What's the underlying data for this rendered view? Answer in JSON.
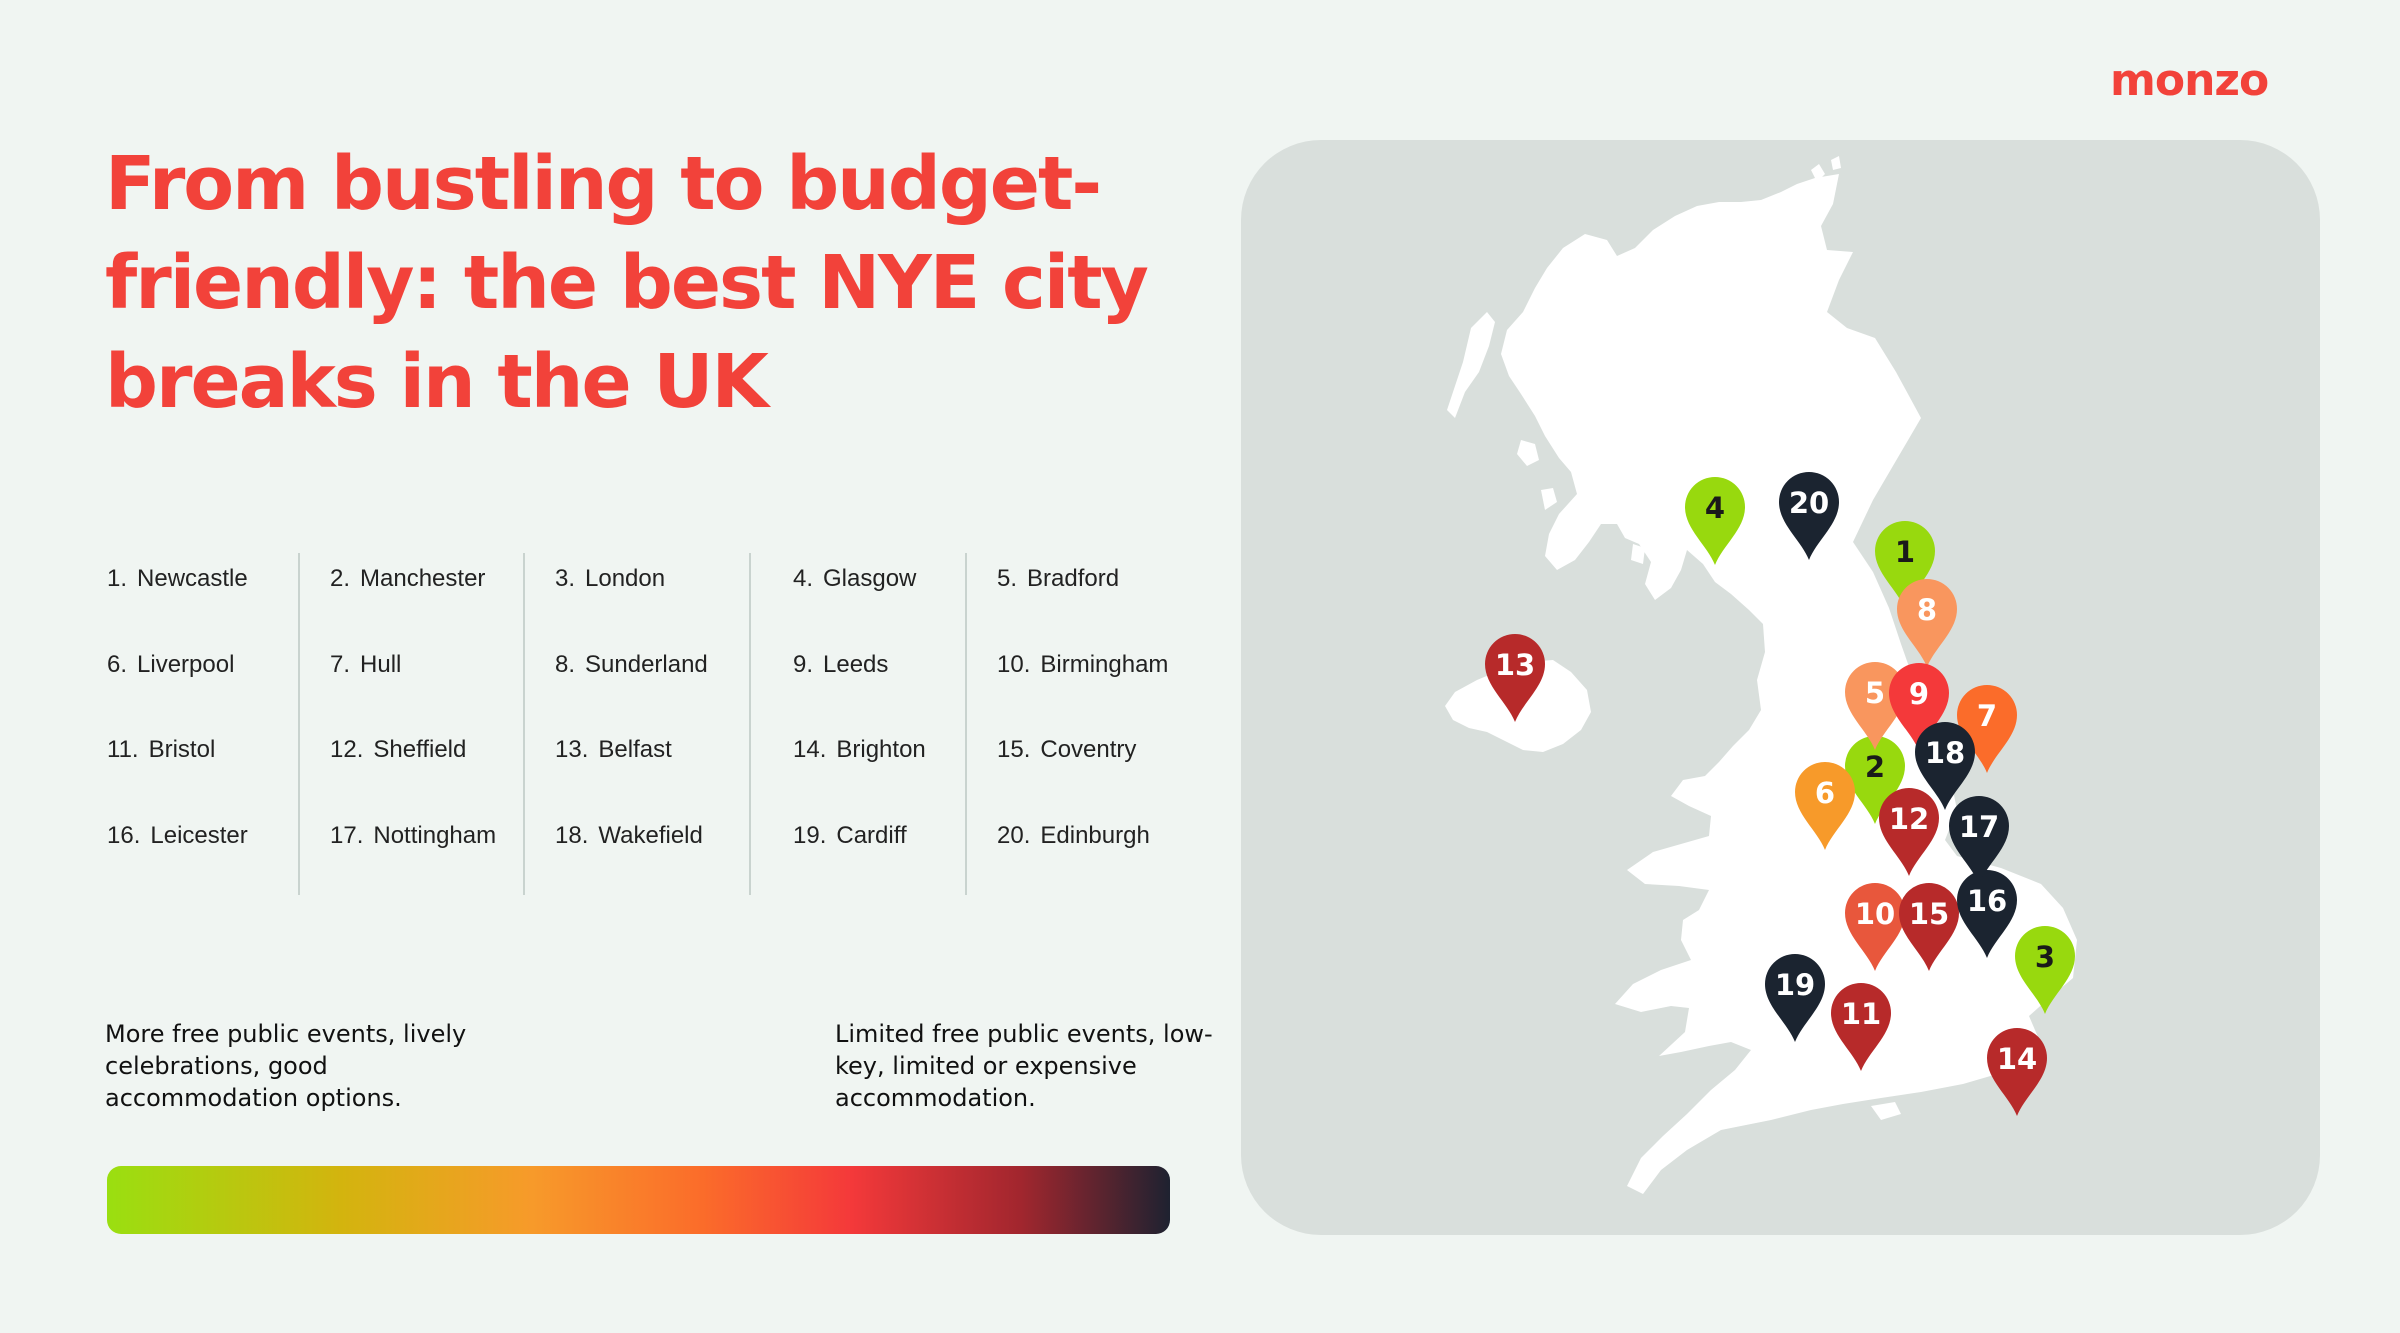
{
  "brand": {
    "name": "monzo"
  },
  "headline": "From bustling to budget-friendly: the best NYE city breaks in the UK",
  "ranking": [
    [
      {
        "num": "1.",
        "city": "Newcastle"
      },
      {
        "num": "6.",
        "city": "Liverpool"
      },
      {
        "num": "11.",
        "city": "Bristol"
      },
      {
        "num": "16.",
        "city": "Leicester"
      }
    ],
    [
      {
        "num": "2.",
        "city": "Manchester"
      },
      {
        "num": "7.",
        "city": "Hull"
      },
      {
        "num": "12.",
        "city": "Sheffield"
      },
      {
        "num": "17.",
        "city": "Nottingham"
      }
    ],
    [
      {
        "num": "3.",
        "city": "London"
      },
      {
        "num": "8.",
        "city": "Sunderland"
      },
      {
        "num": "13.",
        "city": "Belfast"
      },
      {
        "num": "18.",
        "city": "Wakefield"
      }
    ],
    [
      {
        "num": "4.",
        "city": "Glasgow"
      },
      {
        "num": "9.",
        "city": "Leeds"
      },
      {
        "num": "14.",
        "city": "Brighton"
      },
      {
        "num": "19.",
        "city": "Cardiff"
      }
    ],
    [
      {
        "num": "5.",
        "city": "Bradford"
      },
      {
        "num": "10.",
        "city": "Birmingham"
      },
      {
        "num": "15.",
        "city": "Coventry"
      },
      {
        "num": "20.",
        "city": "Edinburgh"
      }
    ]
  ],
  "legend": {
    "left_text": "More free public events, lively celebrations, good accommodation options.",
    "right_text": "Limited free public events, low-key, limited or expensive accommodation."
  },
  "colors": {
    "brand_red": "#f2423a",
    "scale": [
      "#9adf10",
      "#d3b40e",
      "#f79a2a",
      "#fb6c2a",
      "#f4393a",
      "#a1262e",
      "#1e2230"
    ],
    "land": "#ffffff",
    "map_bg": "#d9dfdc"
  },
  "map_pins": [
    {
      "rank": "1",
      "city": "Newcastle",
      "color": "#98d90e",
      "text_color": "#1a1a1a"
    },
    {
      "rank": "2",
      "city": "Manchester",
      "color": "#98d90e",
      "text_color": "#1a1a1a"
    },
    {
      "rank": "3",
      "city": "London",
      "color": "#98d90e",
      "text_color": "#1a1a1a"
    },
    {
      "rank": "4",
      "city": "Glasgow",
      "color": "#98d90e",
      "text_color": "#1a1a1a"
    },
    {
      "rank": "5",
      "city": "Bradford",
      "color": "#f9965e",
      "text_color": "#ffffff"
    },
    {
      "rank": "6",
      "city": "Liverpool",
      "color": "#f79a2a",
      "text_color": "#ffffff"
    },
    {
      "rank": "7",
      "city": "Hull",
      "color": "#fb6c2a",
      "text_color": "#ffffff"
    },
    {
      "rank": "8",
      "city": "Sunderland",
      "color": "#f9965e",
      "text_color": "#ffffff"
    },
    {
      "rank": "9",
      "city": "Leeds",
      "color": "#f4393a",
      "text_color": "#ffffff"
    },
    {
      "rank": "10",
      "city": "Birmingham",
      "color": "#e8573c",
      "text_color": "#ffffff"
    },
    {
      "rank": "11",
      "city": "Bristol",
      "color": "#b72a2a",
      "text_color": "#ffffff"
    },
    {
      "rank": "12",
      "city": "Sheffield",
      "color": "#b72a2a",
      "text_color": "#ffffff"
    },
    {
      "rank": "13",
      "city": "Belfast",
      "color": "#b72a2a",
      "text_color": "#ffffff"
    },
    {
      "rank": "14",
      "city": "Brighton",
      "color": "#b72a2a",
      "text_color": "#ffffff"
    },
    {
      "rank": "15",
      "city": "Coventry",
      "color": "#b72a2a",
      "text_color": "#ffffff"
    },
    {
      "rank": "16",
      "city": "Leicester",
      "color": "#1b2430",
      "text_color": "#ffffff"
    },
    {
      "rank": "17",
      "city": "Nottingham",
      "color": "#1b2430",
      "text_color": "#ffffff"
    },
    {
      "rank": "18",
      "city": "Wakefield",
      "color": "#1b2430",
      "text_color": "#ffffff"
    },
    {
      "rank": "19",
      "city": "Cardiff",
      "color": "#1b2430",
      "text_color": "#ffffff"
    },
    {
      "rank": "20",
      "city": "Edinburgh",
      "color": "#1b2430",
      "text_color": "#ffffff"
    }
  ]
}
